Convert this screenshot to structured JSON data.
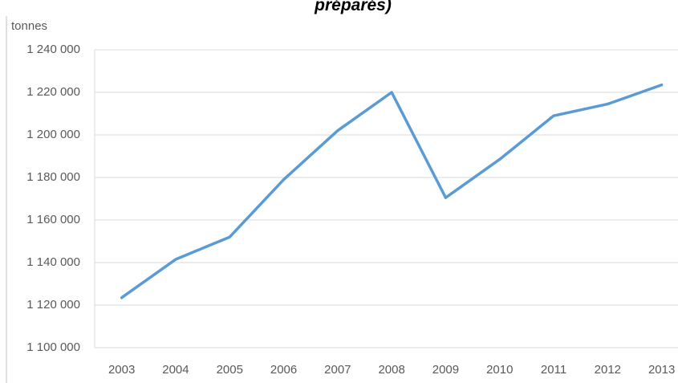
{
  "chart_data": {
    "type": "line",
    "title": "préparés)",
    "ylabel": "tonnes",
    "categories": [
      "2003",
      "2004",
      "2005",
      "2006",
      "2007",
      "2008",
      "2009",
      "2010",
      "2011",
      "2012",
      "2013"
    ],
    "series": [
      {
        "name": "tonnes",
        "color": "#5b9bd5",
        "values": [
          1123500,
          1141500,
          1152000,
          1179000,
          1202000,
          1220000,
          1170500,
          1188500,
          1209000,
          1214500,
          1223500
        ]
      }
    ],
    "ylim": [
      1100000,
      1240000
    ],
    "yticks": [
      {
        "value": 1100000,
        "label": "1 100 000"
      },
      {
        "value": 1120000,
        "label": "1 120 000"
      },
      {
        "value": 1140000,
        "label": "1 140 000"
      },
      {
        "value": 1160000,
        "label": "1 160 000"
      },
      {
        "value": 1180000,
        "label": "1 180 000"
      },
      {
        "value": 1200000,
        "label": "1 200 000"
      },
      {
        "value": 1220000,
        "label": "1 220 000"
      },
      {
        "value": 1240000,
        "label": "1 240 000"
      }
    ],
    "grid": true
  }
}
